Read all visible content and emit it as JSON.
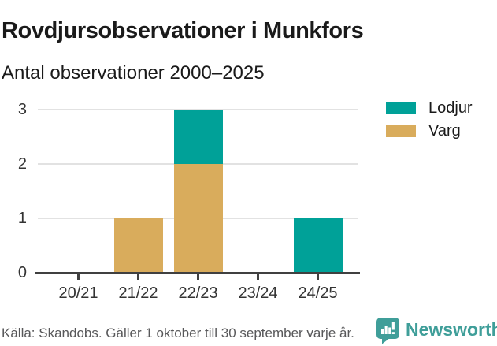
{
  "chart_data": {
    "type": "bar",
    "stacked": true,
    "title": "Rovdjursobservationer i Munkfors",
    "subtitle": "Antal observationer 2000–2025",
    "categories": [
      "20/21",
      "21/22",
      "22/23",
      "23/24",
      "24/25"
    ],
    "series": [
      {
        "name": "Lodjur",
        "color": "#00a198",
        "values": [
          0,
          0,
          1,
          0,
          1
        ]
      },
      {
        "name": "Varg",
        "color": "#d9ac5c",
        "values": [
          0,
          1,
          2,
          0,
          0
        ]
      }
    ],
    "stack_order_bottom_to_top": [
      "Varg",
      "Lodjur"
    ],
    "xlabel": "",
    "ylabel": "",
    "ylim": [
      0,
      3
    ],
    "yticks": [
      0,
      1,
      2,
      3
    ],
    "grid": true,
    "legend_position": "top-right"
  },
  "footer": {
    "source": "Källa: Skandobs. Gäller 1 oktober till 30 september varje år.",
    "brand": "Newsworthy",
    "brand_color": "#3f9e99"
  },
  "colors": {
    "background": "#ffffff",
    "grid": "#e2e2e2",
    "axis": "#404040",
    "title_text": "#1a1a1a",
    "tick_label": "#333333",
    "source_text": "#58585a"
  }
}
